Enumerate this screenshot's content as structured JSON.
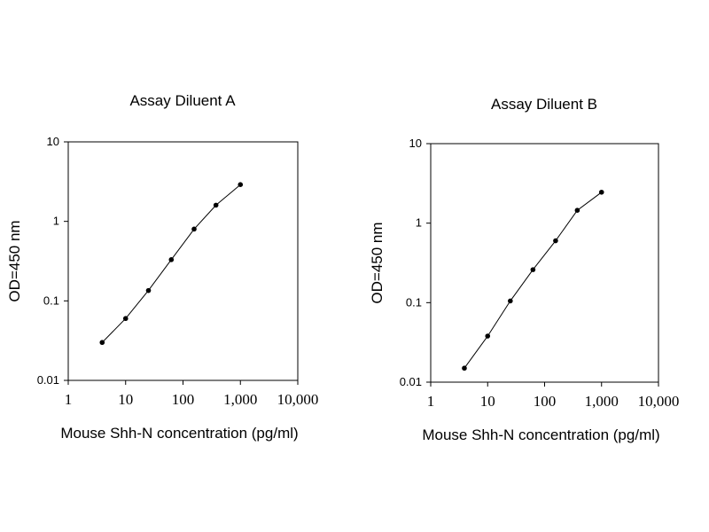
{
  "chart_data": [
    {
      "type": "line",
      "title": "Assay Diluent A",
      "xlabel": "Mouse Shh-N concentration (pg/ml)",
      "ylabel": "OD=450 nm",
      "x_scale": "log",
      "y_scale": "log",
      "xlim": [
        1,
        10000
      ],
      "ylim": [
        0.01,
        10
      ],
      "x_ticks": [
        {
          "value": 1,
          "label": "1"
        },
        {
          "value": 10,
          "label": "10"
        },
        {
          "value": 100,
          "label": "100"
        },
        {
          "value": 1000,
          "label": "1,000"
        },
        {
          "value": 10000,
          "label": "10,000"
        }
      ],
      "y_ticks": [
        {
          "value": 0.01,
          "label": "0.01"
        },
        {
          "value": 0.1,
          "label": "0.1"
        },
        {
          "value": 1,
          "label": "1"
        },
        {
          "value": 10,
          "label": "10"
        }
      ],
      "grid": false,
      "series": [
        {
          "x": [
            3.9,
            10,
            25,
            62.5,
            156,
            375,
            1000
          ],
          "y": [
            0.03,
            0.06,
            0.135,
            0.33,
            0.8,
            1.6,
            2.9
          ]
        }
      ]
    },
    {
      "type": "line",
      "title": "Assay Diluent B",
      "xlabel": "Mouse Shh-N concentration (pg/ml)",
      "ylabel": "OD=450 nm",
      "x_scale": "log",
      "y_scale": "log",
      "xlim": [
        1,
        10000
      ],
      "ylim": [
        0.01,
        10
      ],
      "x_ticks": [
        {
          "value": 1,
          "label": "1"
        },
        {
          "value": 10,
          "label": "10"
        },
        {
          "value": 100,
          "label": "100"
        },
        {
          "value": 1000,
          "label": "1,000"
        },
        {
          "value": 10000,
          "label": "10,000"
        }
      ],
      "y_ticks": [
        {
          "value": 0.01,
          "label": "0.01"
        },
        {
          "value": 0.1,
          "label": "0.1"
        },
        {
          "value": 1,
          "label": "1"
        },
        {
          "value": 10,
          "label": "10"
        }
      ],
      "grid": false,
      "series": [
        {
          "x": [
            3.9,
            10,
            25,
            62.5,
            156,
            375,
            1000
          ],
          "y": [
            0.015,
            0.038,
            0.105,
            0.26,
            0.6,
            1.45,
            2.45
          ]
        }
      ]
    }
  ]
}
